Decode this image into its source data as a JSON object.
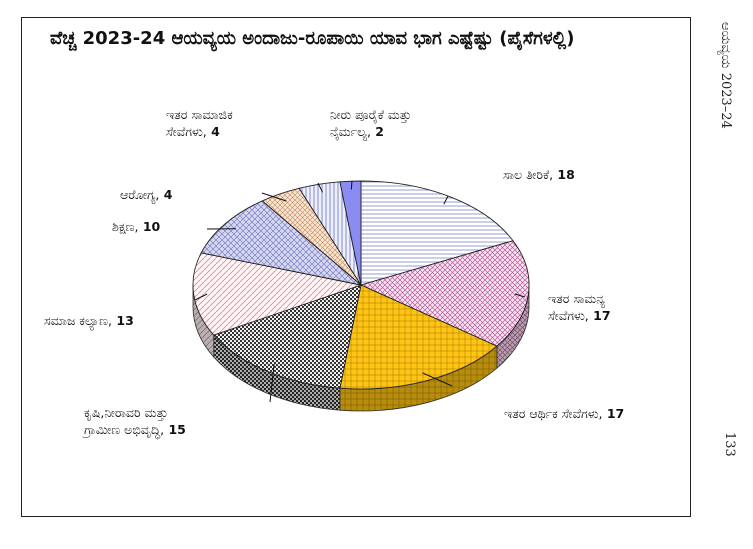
{
  "page": {
    "side_title": "ಆಯವ್ಯಯ 2023–24",
    "page_number": "133"
  },
  "chart_data": {
    "type": "pie",
    "title": "ವೆಚ್ಚ 2023-24 ಆಯವ್ಯಯ ಅಂದಾಜು-ರೂಪಾಯಿ ಯಾವ ಭಾಗ ಎಷ್ಟೆಷ್ಟು (ಪೈಸೆಗಳಲ್ಲಿ)",
    "three_d": true,
    "slices": [
      {
        "label": [
          "ಸಾಲ ತೀರಿಕೆ,"
        ],
        "value": 18,
        "color": "#e9e9f3",
        "pattern": "hlines"
      },
      {
        "label": [
          "ಇತರ ಸಾಮನ್ಯ",
          "ಸೇವೆಗಳು,"
        ],
        "value": 17,
        "color": "#f2e2ee",
        "pattern": "grid-purple"
      },
      {
        "label": [
          "ಇತರ ಆರ್ಥಿಕ ಸೇವೆಗಳು,"
        ],
        "value": 17,
        "color": "#ffc20e",
        "pattern": "grid-gold"
      },
      {
        "label": [
          "ಕೃಷಿ,ನೀರಾವರಿ ಮತ್ತು",
          "ಗ್ರಾಮೀಣ ಅಭಿವೃದ್ಧಿ,"
        ],
        "value": 15,
        "color": "#cfcfcf",
        "pattern": "checker"
      },
      {
        "label": [
          "ಸಮಾಜ ಕಲ್ಯಾಣ,"
        ],
        "value": 13,
        "color": "#fbeef2",
        "pattern": "diag-red"
      },
      {
        "label": [
          "ಶಿಕ್ಷಣ,"
        ],
        "value": 10,
        "color": "#c9cbe6",
        "pattern": "grid-blue"
      },
      {
        "label": [
          "ಆರೋಗ್ಯ,"
        ],
        "value": 4,
        "color": "#f3ddc8",
        "pattern": "cross-brown"
      },
      {
        "label": [
          "ಇತರ ಸಾಮಾಜಿಕ",
          "ಸೇವೆಗಳು,"
        ],
        "value": 4,
        "color": "#e4e6f8",
        "pattern": "vlines-blue"
      },
      {
        "label": [
          "ನೀರು ಪೂರೈಕೆ ಮತ್ತು",
          "ನೈರ್ಮಲ್ಯ,"
        ],
        "value": 2,
        "color": "#8a8cf2",
        "pattern": "solid"
      }
    ]
  }
}
